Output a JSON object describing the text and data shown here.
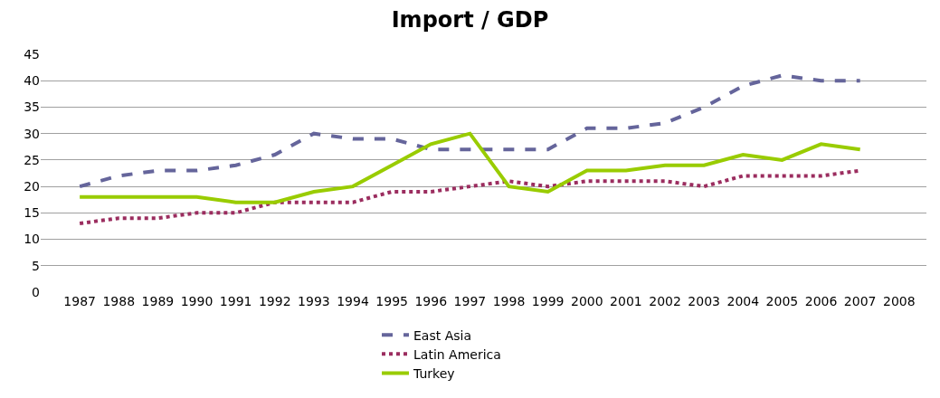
{
  "chart_data": {
    "type": "line",
    "title": "Import / GDP",
    "categories": [
      "1987",
      "1988",
      "1989",
      "1990",
      "1991",
      "1992",
      "1993",
      "1994",
      "1995",
      "1996",
      "1997",
      "1998",
      "1999",
      "2000",
      "2001",
      "2002",
      "2003",
      "2004",
      "2005",
      "2006",
      "2007",
      "2008"
    ],
    "series": [
      {
        "name": "East Asia",
        "color": "#65659b",
        "line_style": "dashed",
        "values": [
          20,
          22,
          23,
          23,
          24,
          26,
          30,
          29,
          29,
          27,
          27,
          27,
          27,
          31,
          31,
          32,
          35,
          39,
          41,
          40,
          40,
          null
        ]
      },
      {
        "name": "Latin America",
        "color": "#9b2d5f",
        "line_style": "dotted",
        "values": [
          13,
          14,
          14,
          15,
          15,
          17,
          17,
          17,
          19,
          19,
          20,
          21,
          20,
          21,
          21,
          21,
          20,
          22,
          22,
          22,
          23,
          null
        ]
      },
      {
        "name": "Turkey",
        "color": "#99cc00",
        "line_style": "solid",
        "values": [
          18,
          18,
          18,
          18,
          17,
          17,
          19,
          20,
          24,
          28,
          30,
          20,
          19,
          23,
          23,
          24,
          24,
          26,
          25,
          28,
          27,
          null
        ]
      }
    ],
    "ylim": [
      0,
      45
    ],
    "yticks": [
      0,
      5,
      10,
      15,
      20,
      25,
      30,
      35,
      40,
      45
    ],
    "grid": "y",
    "legend": "bottom",
    "marker": "none"
  }
}
